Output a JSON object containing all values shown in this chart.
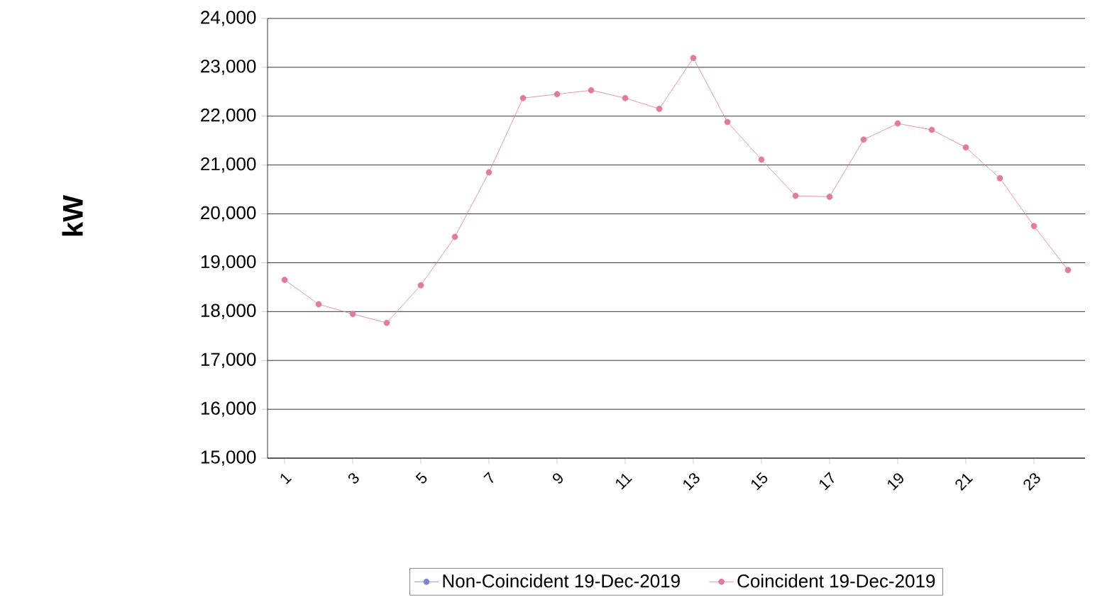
{
  "chart_data": {
    "type": "line",
    "ylabel": "kW",
    "categories": [
      "1",
      null,
      "3",
      null,
      "5",
      null,
      "7",
      null,
      "9",
      null,
      "11",
      null,
      "13",
      null,
      "15",
      null,
      "17",
      null,
      "19",
      null,
      "21",
      null,
      "23",
      null
    ],
    "ylim": [
      15000,
      24000
    ],
    "yticks": [
      {
        "value": 15000,
        "label": "15,000"
      },
      {
        "value": 16000,
        "label": "16,000"
      },
      {
        "value": 17000,
        "label": "17,000"
      },
      {
        "value": 18000,
        "label": "18,000"
      },
      {
        "value": 19000,
        "label": "19,000"
      },
      {
        "value": 20000,
        "label": "20,000"
      },
      {
        "value": 21000,
        "label": "21,000"
      },
      {
        "value": 22000,
        "label": "22,000"
      },
      {
        "value": 23000,
        "label": "23,000"
      },
      {
        "value": 24000,
        "label": "24,000"
      }
    ],
    "grid": "y",
    "legend": "bottom",
    "marker": "circle",
    "series": [
      {
        "name": "Non-Coincident 19-Dec-2019",
        "color": "#7b84c8",
        "values": [
          null,
          null,
          null,
          null,
          null,
          null,
          null,
          null,
          null,
          null,
          null,
          null,
          null,
          null,
          null,
          null,
          null,
          null,
          null,
          null,
          null,
          null,
          null,
          null
        ]
      },
      {
        "name": "Coincident 19-Dec-2019",
        "color": "#e07aa0",
        "values": [
          18650,
          18150,
          17950,
          17770,
          18540,
          19530,
          20850,
          22370,
          22450,
          22530,
          22370,
          22150,
          23190,
          21880,
          21110,
          20370,
          20350,
          21520,
          21850,
          21720,
          21360,
          20730,
          19750,
          18850
        ]
      }
    ]
  }
}
